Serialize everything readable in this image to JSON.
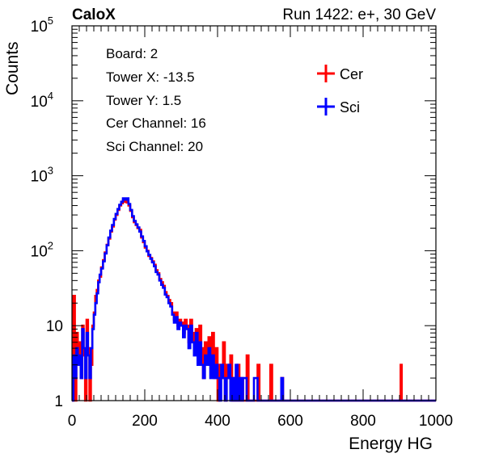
{
  "header": {
    "left_label": "CaloX",
    "right_label": "Run 1422: e+, 30 GeV"
  },
  "info_box": {
    "lines": [
      "Board: 2",
      "Tower X: -13.5",
      "Tower Y: 1.5",
      "Cer Channel: 16",
      "Sci Channel: 20"
    ]
  },
  "chart_data": {
    "type": "line",
    "xlabel": "Energy HG",
    "ylabel": "Counts",
    "xlim": [
      0,
      1000
    ],
    "ylim": [
      1,
      100000
    ],
    "yscale": "log",
    "x_ticks": [
      "0",
      "200",
      "400",
      "600",
      "800",
      "1000"
    ],
    "y_ticks": [
      {
        "value": 1,
        "base": "1",
        "exp": ""
      },
      {
        "value": 10,
        "base": "10",
        "exp": ""
      },
      {
        "value": 100,
        "base": "10",
        "exp": "2"
      },
      {
        "value": 1000,
        "base": "10",
        "exp": "3"
      },
      {
        "value": 10000,
        "base": "10",
        "exp": "4"
      },
      {
        "value": 100000,
        "base": "10",
        "exp": "5"
      }
    ],
    "legend_position": "top-right",
    "series": [
      {
        "name": "Cer",
        "color": "#ff0000",
        "points": [
          [
            0,
            1
          ],
          [
            4,
            25
          ],
          [
            8,
            1
          ],
          [
            12,
            8
          ],
          [
            16,
            3
          ],
          [
            20,
            6
          ],
          [
            24,
            2
          ],
          [
            28,
            10
          ],
          [
            32,
            4
          ],
          [
            36,
            1
          ],
          [
            40,
            12
          ],
          [
            44,
            5
          ],
          [
            48,
            1
          ],
          [
            52,
            3
          ],
          [
            56,
            10
          ],
          [
            60,
            15
          ],
          [
            64,
            25
          ],
          [
            68,
            30
          ],
          [
            72,
            40
          ],
          [
            76,
            45
          ],
          [
            80,
            60
          ],
          [
            85,
            75
          ],
          [
            90,
            95
          ],
          [
            95,
            120
          ],
          [
            100,
            145
          ],
          [
            105,
            180
          ],
          [
            110,
            210
          ],
          [
            115,
            260
          ],
          [
            120,
            300
          ],
          [
            125,
            350
          ],
          [
            130,
            400
          ],
          [
            135,
            430
          ],
          [
            140,
            470
          ],
          [
            145,
            450
          ],
          [
            150,
            440
          ],
          [
            155,
            400
          ],
          [
            160,
            340
          ],
          [
            165,
            280
          ],
          [
            170,
            240
          ],
          [
            175,
            220
          ],
          [
            180,
            200
          ],
          [
            185,
            190
          ],
          [
            190,
            150
          ],
          [
            195,
            130
          ],
          [
            200,
            110
          ],
          [
            205,
            100
          ],
          [
            210,
            85
          ],
          [
            215,
            80
          ],
          [
            220,
            72
          ],
          [
            225,
            65
          ],
          [
            230,
            55
          ],
          [
            235,
            50
          ],
          [
            240,
            42
          ],
          [
            245,
            38
          ],
          [
            250,
            34
          ],
          [
            255,
            28
          ],
          [
            260,
            25
          ],
          [
            265,
            22
          ],
          [
            270,
            20
          ],
          [
            275,
            15
          ],
          [
            280,
            12
          ],
          [
            285,
            15
          ],
          [
            290,
            10
          ],
          [
            295,
            12
          ],
          [
            300,
            11
          ],
          [
            305,
            8
          ],
          [
            310,
            12
          ],
          [
            315,
            10
          ],
          [
            320,
            6
          ],
          [
            325,
            12
          ],
          [
            330,
            8
          ],
          [
            335,
            5
          ],
          [
            340,
            9
          ],
          [
            345,
            4
          ],
          [
            350,
            10
          ],
          [
            355,
            5
          ],
          [
            360,
            2
          ],
          [
            365,
            6
          ],
          [
            370,
            4
          ],
          [
            375,
            7
          ],
          [
            380,
            3
          ],
          [
            385,
            8
          ],
          [
            390,
            2
          ],
          [
            395,
            5
          ],
          [
            400,
            1
          ],
          [
            405,
            3
          ],
          [
            410,
            2
          ],
          [
            415,
            6
          ],
          [
            420,
            1
          ],
          [
            425,
            3
          ],
          [
            430,
            2
          ],
          [
            435,
            4
          ],
          [
            440,
            1
          ],
          [
            445,
            2
          ],
          [
            450,
            1
          ],
          [
            455,
            3
          ],
          [
            460,
            1
          ],
          [
            465,
            2
          ],
          [
            470,
            1
          ],
          [
            475,
            1
          ],
          [
            480,
            4
          ],
          [
            485,
            1
          ],
          [
            490,
            1
          ],
          [
            500,
            1
          ],
          [
            510,
            3
          ],
          [
            515,
            1
          ],
          [
            540,
            1
          ],
          [
            545,
            3
          ],
          [
            550,
            1
          ],
          [
            560,
            1
          ],
          [
            570,
            1
          ],
          [
            575,
            2
          ],
          [
            580,
            1
          ],
          [
            900,
            1
          ],
          [
            903,
            3
          ],
          [
            906,
            1
          ],
          [
            1000,
            1
          ]
        ]
      },
      {
        "name": "Sci",
        "color": "#0000ff",
        "points": [
          [
            0,
            1
          ],
          [
            4,
            4
          ],
          [
            8,
            2
          ],
          [
            12,
            5
          ],
          [
            16,
            3
          ],
          [
            20,
            4
          ],
          [
            24,
            2
          ],
          [
            28,
            9
          ],
          [
            32,
            5
          ],
          [
            36,
            2
          ],
          [
            40,
            8
          ],
          [
            44,
            4
          ],
          [
            48,
            2
          ],
          [
            52,
            5
          ],
          [
            56,
            9
          ],
          [
            60,
            14
          ],
          [
            64,
            20
          ],
          [
            68,
            27
          ],
          [
            72,
            38
          ],
          [
            76,
            48
          ],
          [
            80,
            58
          ],
          [
            85,
            72
          ],
          [
            90,
            92
          ],
          [
            95,
            118
          ],
          [
            100,
            150
          ],
          [
            105,
            185
          ],
          [
            110,
            220
          ],
          [
            115,
            265
          ],
          [
            120,
            310
          ],
          [
            125,
            360
          ],
          [
            130,
            410
          ],
          [
            135,
            450
          ],
          [
            140,
            500
          ],
          [
            145,
            480
          ],
          [
            150,
            500
          ],
          [
            155,
            420
          ],
          [
            160,
            350
          ],
          [
            165,
            290
          ],
          [
            170,
            250
          ],
          [
            175,
            225
          ],
          [
            180,
            205
          ],
          [
            185,
            180
          ],
          [
            190,
            155
          ],
          [
            195,
            135
          ],
          [
            200,
            115
          ],
          [
            205,
            98
          ],
          [
            210,
            88
          ],
          [
            215,
            78
          ],
          [
            220,
            70
          ],
          [
            225,
            62
          ],
          [
            230,
            52
          ],
          [
            235,
            48
          ],
          [
            240,
            40
          ],
          [
            245,
            35
          ],
          [
            250,
            32
          ],
          [
            255,
            26
          ],
          [
            260,
            24
          ],
          [
            265,
            20
          ],
          [
            270,
            18
          ],
          [
            275,
            14
          ],
          [
            280,
            11
          ],
          [
            285,
            13
          ],
          [
            290,
            9
          ],
          [
            295,
            11
          ],
          [
            300,
            10
          ],
          [
            305,
            7
          ],
          [
            310,
            10
          ],
          [
            315,
            9
          ],
          [
            320,
            5
          ],
          [
            325,
            10
          ],
          [
            330,
            6
          ],
          [
            335,
            4
          ],
          [
            340,
            8
          ],
          [
            345,
            3
          ],
          [
            350,
            6
          ],
          [
            355,
            3
          ],
          [
            360,
            2
          ],
          [
            365,
            4
          ],
          [
            370,
            3
          ],
          [
            375,
            5
          ],
          [
            380,
            2
          ],
          [
            385,
            4
          ],
          [
            390,
            2
          ],
          [
            395,
            3
          ],
          [
            400,
            2
          ],
          [
            405,
            1
          ],
          [
            410,
            3
          ],
          [
            415,
            2
          ],
          [
            420,
            1
          ],
          [
            425,
            2
          ],
          [
            430,
            3
          ],
          [
            435,
            1
          ],
          [
            440,
            2
          ],
          [
            445,
            1
          ],
          [
            450,
            3
          ],
          [
            455,
            1
          ],
          [
            460,
            2
          ],
          [
            465,
            1
          ],
          [
            470,
            2
          ],
          [
            480,
            1
          ],
          [
            490,
            1
          ],
          [
            500,
            2
          ],
          [
            510,
            1
          ],
          [
            520,
            1
          ],
          [
            575,
            2
          ],
          [
            580,
            1
          ],
          [
            1000,
            1
          ]
        ]
      }
    ]
  }
}
